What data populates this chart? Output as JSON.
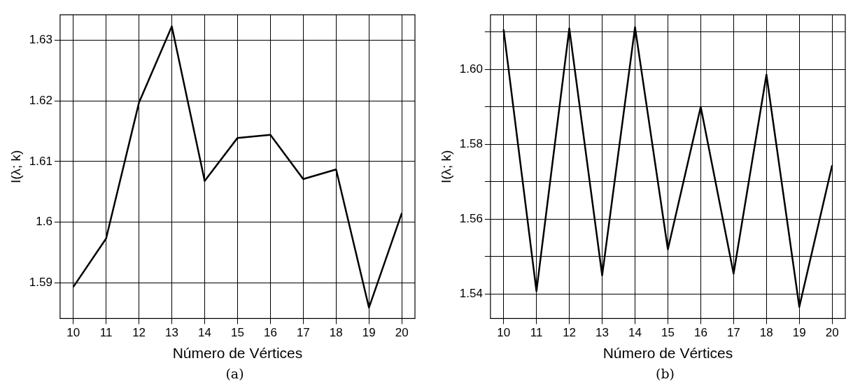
{
  "chart_data": [
    {
      "type": "line",
      "xlabel": "Número de Vértices",
      "ylabel": "I(λ; k)",
      "annotations": [
        "(a)"
      ],
      "x": [
        10,
        11,
        12,
        13,
        14,
        15,
        16,
        17,
        18,
        19,
        20
      ],
      "color": "#000000",
      "values": [
        1.5893,
        1.5973,
        1.6197,
        1.6323,
        1.6068,
        1.6139,
        1.6144,
        1.6071,
        1.6087,
        1.5859,
        1.6015
      ],
      "xlim": [
        9.6,
        20.4
      ],
      "xticks": [
        10,
        11,
        12,
        13,
        14,
        15,
        16,
        17,
        18,
        19,
        20
      ],
      "ylim": [
        1.5841,
        1.6342
      ],
      "yticks": [
        1.59,
        1.6,
        1.61,
        1.62,
        1.63
      ],
      "grid": true
    },
    {
      "type": "line",
      "xlabel": "Número de Vértices",
      "ylabel": "I(λ; k)",
      "annotations": [
        "(b)"
      ],
      "x": [
        10,
        11,
        12,
        13,
        14,
        15,
        16,
        17,
        18,
        19,
        20
      ],
      "color": "#000000",
      "values": [
        1.6107,
        1.5407,
        1.611,
        1.5449,
        1.6113,
        1.5519,
        1.59,
        1.5454,
        1.5986,
        1.5365,
        1.5744
      ],
      "xlim": [
        9.6,
        20.4
      ],
      "xticks": [
        10,
        11,
        12,
        13,
        14,
        15,
        16,
        17,
        18,
        19,
        20
      ],
      "ylim": [
        1.5334,
        1.6146
      ],
      "yticks": [
        {
          "value": 1.54,
          "label": "1.54"
        },
        {
          "value": 1.55,
          "label": null
        },
        {
          "value": 1.56,
          "label": "1.56"
        },
        {
          "value": 1.57,
          "label": null
        },
        {
          "value": 1.58,
          "label": "1.58"
        },
        {
          "value": 1.59,
          "label": null
        },
        {
          "value": 1.6,
          "label": "1.60"
        },
        {
          "value": 1.61,
          "label": null
        }
      ],
      "grid": true
    }
  ]
}
